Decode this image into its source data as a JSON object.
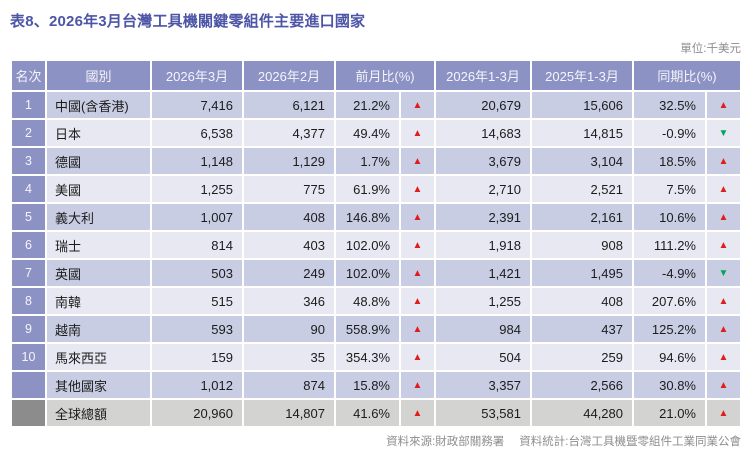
{
  "page": {
    "title": "表8、2026年3月台灣工具機關鍵零組件主要進口國家",
    "unit_label": "單位:千美元",
    "source_label": "資料來源:財政部關務署",
    "stats_label": "資料統計:台灣工具機暨零組件工業同業公會"
  },
  "colors": {
    "title_text": "#4c55a6",
    "header_bg": "#8d92c4",
    "row_dark_bg": "#c9cde3",
    "row_light_bg": "#e7e8f2",
    "total_row_bg": "#d3d3d1",
    "total_rank_bg": "#8c8c8c",
    "up_arrow": "#e11d1d",
    "down_arrow": "#00a65e",
    "muted_text": "#8e8e8e"
  },
  "icons": {
    "up": "▲",
    "down": "▼"
  },
  "table": {
    "columns": [
      "名次",
      "國別",
      "2026年3月",
      "2026年2月",
      "前月比(%)",
      "2026年1-3月",
      "2025年1-3月",
      "同期比(%)"
    ],
    "rows": [
      {
        "rank": "1",
        "country": "中國(含香港)",
        "mar": "7,416",
        "feb": "6,121",
        "mom_pct": "21.2%",
        "mom_dir": "up",
        "ytd26": "20,679",
        "ytd25": "15,606",
        "yoy_pct": "32.5%",
        "yoy_dir": "up",
        "total": false
      },
      {
        "rank": "2",
        "country": "日本",
        "mar": "6,538",
        "feb": "4,377",
        "mom_pct": "49.4%",
        "mom_dir": "up",
        "ytd26": "14,683",
        "ytd25": "14,815",
        "yoy_pct": "-0.9%",
        "yoy_dir": "down",
        "total": false
      },
      {
        "rank": "3",
        "country": "德國",
        "mar": "1,148",
        "feb": "1,129",
        "mom_pct": "1.7%",
        "mom_dir": "up",
        "ytd26": "3,679",
        "ytd25": "3,104",
        "yoy_pct": "18.5%",
        "yoy_dir": "up",
        "total": false
      },
      {
        "rank": "4",
        "country": "美國",
        "mar": "1,255",
        "feb": "775",
        "mom_pct": "61.9%",
        "mom_dir": "up",
        "ytd26": "2,710",
        "ytd25": "2,521",
        "yoy_pct": "7.5%",
        "yoy_dir": "up",
        "total": false
      },
      {
        "rank": "5",
        "country": "義大利",
        "mar": "1,007",
        "feb": "408",
        "mom_pct": "146.8%",
        "mom_dir": "up",
        "ytd26": "2,391",
        "ytd25": "2,161",
        "yoy_pct": "10.6%",
        "yoy_dir": "up",
        "total": false
      },
      {
        "rank": "6",
        "country": "瑞士",
        "mar": "814",
        "feb": "403",
        "mom_pct": "102.0%",
        "mom_dir": "up",
        "ytd26": "1,918",
        "ytd25": "908",
        "yoy_pct": "111.2%",
        "yoy_dir": "up",
        "total": false
      },
      {
        "rank": "7",
        "country": "英國",
        "mar": "503",
        "feb": "249",
        "mom_pct": "102.0%",
        "mom_dir": "up",
        "ytd26": "1,421",
        "ytd25": "1,495",
        "yoy_pct": "-4.9%",
        "yoy_dir": "down",
        "total": false
      },
      {
        "rank": "8",
        "country": "南韓",
        "mar": "515",
        "feb": "346",
        "mom_pct": "48.8%",
        "mom_dir": "up",
        "ytd26": "1,255",
        "ytd25": "408",
        "yoy_pct": "207.6%",
        "yoy_dir": "up",
        "total": false
      },
      {
        "rank": "9",
        "country": "越南",
        "mar": "593",
        "feb": "90",
        "mom_pct": "558.9%",
        "mom_dir": "up",
        "ytd26": "984",
        "ytd25": "437",
        "yoy_pct": "125.2%",
        "yoy_dir": "up",
        "total": false
      },
      {
        "rank": "10",
        "country": "馬來西亞",
        "mar": "159",
        "feb": "35",
        "mom_pct": "354.3%",
        "mom_dir": "up",
        "ytd26": "504",
        "ytd25": "259",
        "yoy_pct": "94.6%",
        "yoy_dir": "up",
        "total": false
      },
      {
        "rank": "",
        "country": "其他國家",
        "mar": "1,012",
        "feb": "874",
        "mom_pct": "15.8%",
        "mom_dir": "up",
        "ytd26": "3,357",
        "ytd25": "2,566",
        "yoy_pct": "30.8%",
        "yoy_dir": "up",
        "total": false
      },
      {
        "rank": "",
        "country": "全球總額",
        "mar": "20,960",
        "feb": "14,807",
        "mom_pct": "41.6%",
        "mom_dir": "up",
        "ytd26": "53,581",
        "ytd25": "44,280",
        "yoy_pct": "21.0%",
        "yoy_dir": "up",
        "total": true
      }
    ]
  }
}
